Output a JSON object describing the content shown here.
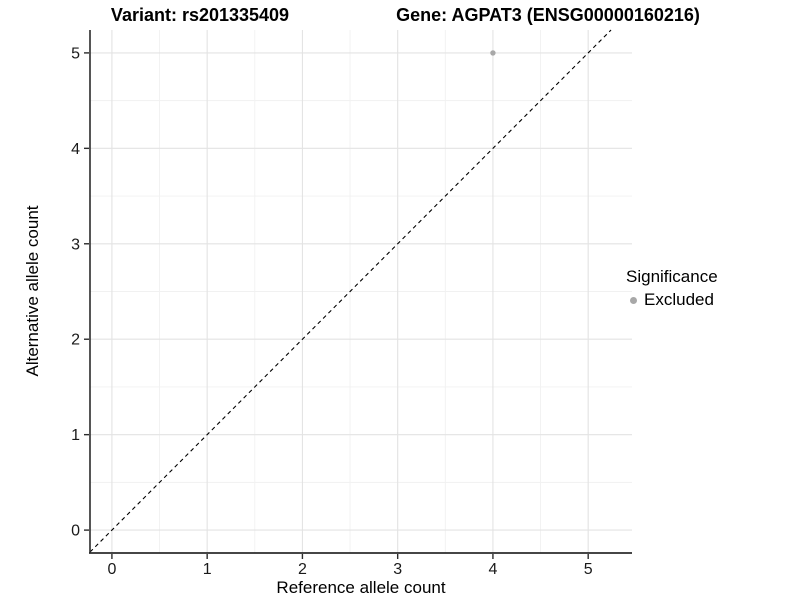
{
  "titles": {
    "variant": "Variant: rs201335409",
    "gene": "Gene: AGPAT3 (ENSG00000160216)"
  },
  "legend": {
    "title": "Significance",
    "items": [
      {
        "label": "Excluded",
        "color": "#a8a8a8"
      }
    ]
  },
  "chart_data": {
    "type": "scatter",
    "xlabel": "Reference allele count",
    "ylabel": "Alternative allele count",
    "xlim": [
      -0.23,
      5.46
    ],
    "ylim": [
      -0.24,
      5.24
    ],
    "xticks": [
      0,
      1,
      2,
      3,
      4,
      5
    ],
    "yticks": [
      0,
      1,
      2,
      3,
      4,
      5
    ],
    "minor_xticks": [
      0.5,
      1.5,
      2.5,
      3.5,
      4.5
    ],
    "minor_yticks": [
      0.5,
      1.5,
      2.5,
      3.5,
      4.5
    ],
    "grid": true,
    "legend_position": "right",
    "series": [
      {
        "name": "Excluded",
        "points": [
          {
            "x": 4,
            "y": 5
          }
        ]
      }
    ],
    "reference_line": {
      "type": "identity",
      "style": "dashed",
      "color": "#000000"
    },
    "colors": {
      "point": "#a8a8a8",
      "grid_major": "#e3e3e3",
      "grid_minor": "#f1f1f1",
      "axis": "#2b2b2b",
      "tick_label": "#1a1a1a"
    }
  }
}
